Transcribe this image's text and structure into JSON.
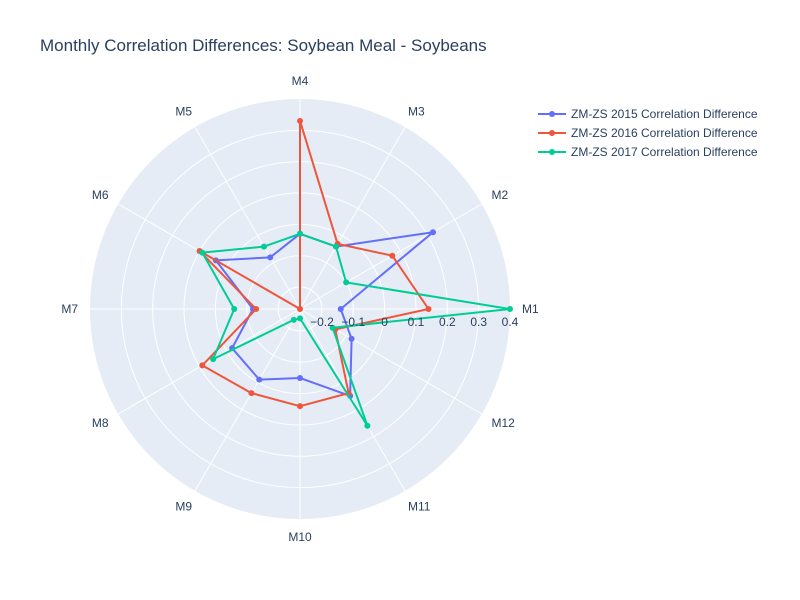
{
  "chart_data": {
    "type": "polar-line",
    "title": "Monthly Correlation Differences: Soybean Meal - Soybeans",
    "angular_categories": [
      "M1",
      "M2",
      "M3",
      "M4",
      "M5",
      "M6",
      "M7",
      "M8",
      "M9",
      "M10",
      "M11",
      "M12"
    ],
    "radial_range": [
      -0.27,
      0.4
    ],
    "radial_ticks": [
      -0.2,
      -0.1,
      0,
      0.1,
      0.2,
      0.3,
      0.4
    ],
    "radial_tick_labels": [
      "−0.2",
      "−0.1",
      "0",
      "0.1",
      "0.2",
      "0.3",
      "0.4"
    ],
    "legend_position": "top-right",
    "series": [
      {
        "name": "ZM-ZS 2015 Correlation Difference",
        "color": "#636efa",
        "values": [
          -0.14,
          0.22,
          -0.04,
          -0.03,
          -0.08,
          0.04,
          -0.12,
          -0.02,
          -0.01,
          -0.05,
          0.05,
          -0.08
        ]
      },
      {
        "name": "ZM-ZS 2016 Correlation Difference",
        "color": "#ef553b",
        "values": [
          0.14,
          0.07,
          -0.03,
          0.33,
          -0.27,
          0.1,
          -0.13,
          0.09,
          0.04,
          0.04,
          0.04,
          -0.14
        ]
      },
      {
        "name": "ZM-ZS 2017 Correlation Difference",
        "color": "#00cc96",
        "values": [
          0.4,
          -0.1,
          -0.04,
          -0.03,
          -0.04,
          0.09,
          -0.06,
          0.05,
          -0.23,
          -0.24,
          0.16,
          -0.15
        ]
      }
    ]
  }
}
